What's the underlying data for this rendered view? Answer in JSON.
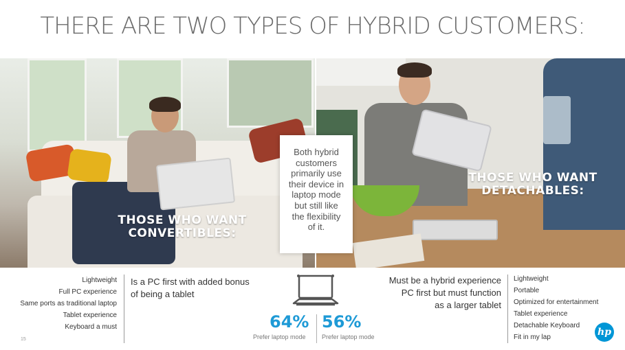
{
  "title": "THERE ARE TWO TYPES OF HYBRID CUSTOMERS:",
  "left_photo": {
    "label_line1": "THOSE WHO WANT",
    "label_line2": "CONVERTIBLES:"
  },
  "right_photo": {
    "label_line1": "THOSE WHO WANT",
    "label_line2": "DETACHABLES:"
  },
  "callout": {
    "lines": [
      "Both hybrid",
      "customers",
      "primarily use",
      "their device in",
      "laptop mode",
      "but still like",
      "the flexibility",
      "of it."
    ]
  },
  "convertibles": {
    "features": [
      "Lightweight",
      "Full PC experience",
      "Same ports as traditional laptop",
      "Tablet experience",
      "Keyboard a must"
    ],
    "description": [
      "Is a PC first with added bonus",
      "of being a tablet"
    ]
  },
  "detachables": {
    "features": [
      "Lightweight",
      "Portable",
      "Optimized for entertainment",
      "Tablet experience",
      "Detachable Keyboard",
      "Fit in my lap"
    ],
    "description": [
      "Must be a hybrid experience",
      "PC first but must function",
      "as a larger tablet"
    ]
  },
  "stats": {
    "left_value": "64%",
    "left_caption": "Prefer laptop mode",
    "right_value": "56%",
    "right_caption": "Prefer laptop mode",
    "accent_color": "#1e9ad6"
  },
  "page_number": "15",
  "logo_text": "hp",
  "icons": {
    "center": "laptop-icon",
    "brand": "hp-logo"
  }
}
